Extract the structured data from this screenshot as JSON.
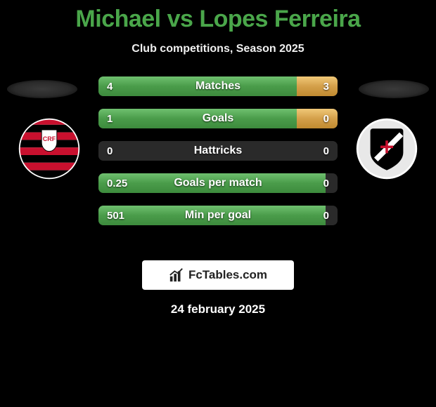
{
  "header": {
    "title": "Michael vs Lopes Ferreira",
    "title_color": "#4aa64a",
    "title_fontsize": 34,
    "subtitle": "Club competitions, Season 2025",
    "subtitle_color": "#f0f0f0",
    "subtitle_fontsize": 16
  },
  "background_color": "#000000",
  "stats": {
    "bar_track_color": "#2a2a2a",
    "left_fill_gradient": [
      "#6fc06f",
      "#4a9c4a",
      "#3d8b3d"
    ],
    "right_fill_gradient": [
      "#f0c878",
      "#d4a04a",
      "#c08a30"
    ],
    "text_color": "#ffffff",
    "label_fontsize": 16,
    "value_fontsize": 15,
    "rows": [
      {
        "label": "Matches",
        "left_value": "4",
        "right_value": "3",
        "left_pct": 83,
        "right_pct": 17
      },
      {
        "label": "Goals",
        "left_value": "1",
        "right_value": "0",
        "left_pct": 83,
        "right_pct": 17
      },
      {
        "label": "Hattricks",
        "left_value": "0",
        "right_value": "0",
        "left_pct": 0,
        "right_pct": 0
      },
      {
        "label": "Goals per match",
        "left_value": "0.25",
        "right_value": "0",
        "left_pct": 95,
        "right_pct": 0
      },
      {
        "label": "Min per goal",
        "left_value": "501",
        "right_value": "0",
        "left_pct": 95,
        "right_pct": 0
      }
    ]
  },
  "crests": {
    "left": {
      "semantic": "flamengo-crest",
      "ring_color": "#ffffff",
      "stripe_red": "#c8102e",
      "stripe_black": "#000000",
      "emblem_bg": "#ffffff",
      "emblem_text_color": "#c8102e",
      "emblem_text": "CRF"
    },
    "right": {
      "semantic": "vasco-crest",
      "ring_color": "#ffffff",
      "shield_fill": "#000000",
      "sash_color": "#ffffff",
      "cross_color": "#c8102e"
    }
  },
  "brand": {
    "text": "FcTables.com",
    "box_bg": "#ffffff",
    "text_color": "#222222",
    "icon_color": "#222222",
    "fontsize": 17
  },
  "footer": {
    "date": "24 february 2025",
    "color": "#ffffff",
    "fontsize": 17
  }
}
